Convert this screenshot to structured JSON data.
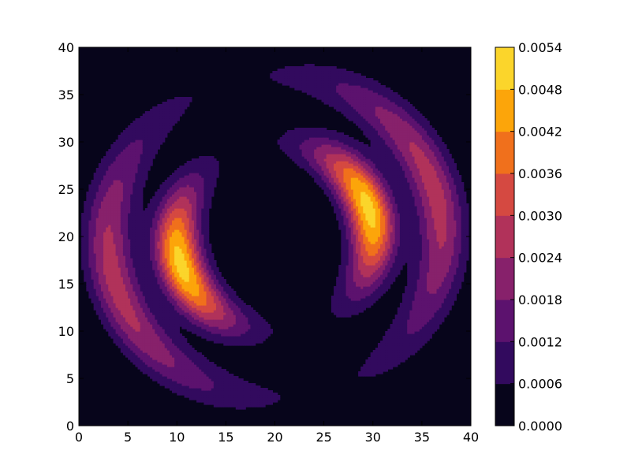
{
  "chart_data": {
    "type": "contourf",
    "colormap": "inferno",
    "x_range": [
      0,
      40
    ],
    "y_range": [
      0,
      40
    ],
    "x_ticks": [
      "0",
      "5",
      "10",
      "15",
      "20",
      "25",
      "30",
      "35",
      "40"
    ],
    "y_ticks": [
      "0",
      "5",
      "10",
      "15",
      "20",
      "25",
      "30",
      "35",
      "40"
    ],
    "colorbar": {
      "levels": [
        0.0,
        0.0006,
        0.0012,
        0.0018,
        0.0024,
        0.003,
        0.0036,
        0.0042,
        0.0048,
        0.0054
      ],
      "tick_labels": [
        "0.0000",
        "0.0006",
        "0.0012",
        "0.0018",
        "0.0024",
        "0.0030",
        "0.0036",
        "0.0042",
        "0.0048",
        "0.0054"
      ],
      "colors": [
        "#07051b",
        "#320a5e",
        "#5c126e",
        "#87216b",
        "#b1325a",
        "#d54941",
        "#f0701c",
        "#fca50a",
        "#fbd52b",
        "#f3f06c"
      ]
    },
    "features": [
      {
        "shape": "arc",
        "center": [
          20,
          20
        ],
        "radius": 10.0,
        "half_width": 2.3,
        "angle_deg": 197,
        "spread_deg": 48,
        "peak": 0.0051
      },
      {
        "shape": "arc",
        "center": [
          20,
          20
        ],
        "radius": 10.0,
        "half_width": 2.3,
        "angle_deg": 17,
        "spread_deg": 48,
        "peak": 0.0051
      },
      {
        "shape": "arc",
        "center": [
          20,
          20
        ],
        "radius": 17.0,
        "half_width": 2.4,
        "angle_deg": 196,
        "spread_deg": 58,
        "peak": 0.0027
      },
      {
        "shape": "arc",
        "center": [
          20,
          20
        ],
        "radius": 17.0,
        "half_width": 2.4,
        "angle_deg": 16,
        "spread_deg": 58,
        "peak": 0.0027
      }
    ]
  }
}
